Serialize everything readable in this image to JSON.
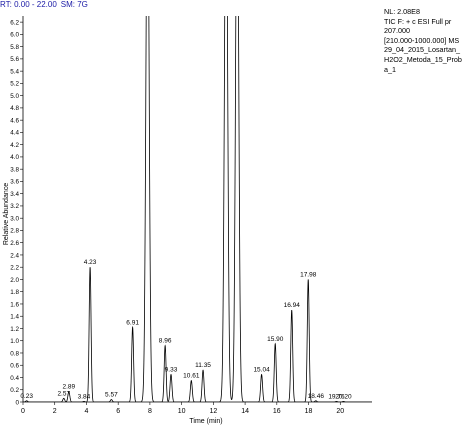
{
  "header": {
    "range_label": "RT: 0.00 - 22.00",
    "smoothing_label": "SM: 7G"
  },
  "info": {
    "lines": [
      "NL: 2.08E8",
      "TIC F: + c ESI Full pr",
      "207.000",
      "[210.000-1000.000]  MS",
      "29_04_2015_Losartan_",
      "H2O2_Metoda_15_Prob",
      "a_1"
    ]
  },
  "chart_data": {
    "type": "line",
    "title": "",
    "xlabel": "Time (min)",
    "ylabel": "Relative Abundance",
    "xlim": [
      0,
      22
    ],
    "ylim": [
      0,
      6.3
    ],
    "x_ticks": [
      0,
      2,
      4,
      6,
      8,
      10,
      12,
      14,
      16,
      18,
      20
    ],
    "y_ticks": [
      "0",
      "0.2",
      "0.4",
      "0.6",
      "0.8",
      "1.0",
      "1.2",
      "1.4",
      "1.6",
      "1.8",
      "2.0",
      "2.2",
      "2.4",
      "2.6",
      "2.8",
      "3.0",
      "3.2",
      "3.4",
      "3.6",
      "3.8",
      "4.0",
      "4.2",
      "4.4",
      "4.6",
      "4.8",
      "5.0",
      "5.2",
      "5.4",
      "5.6",
      "5.8",
      "6.0",
      "6.2"
    ],
    "grid": false,
    "peaks": [
      {
        "rt": 0.23,
        "height": 0.02,
        "label": "0.23"
      },
      {
        "rt": 2.57,
        "height": 0.06,
        "label": "2.57"
      },
      {
        "rt": 2.89,
        "height": 0.17,
        "label": "2.89"
      },
      {
        "rt": 3.84,
        "height": 0.01,
        "label": "3.84"
      },
      {
        "rt": 4.23,
        "height": 2.2,
        "label": "4.23"
      },
      {
        "rt": 5.57,
        "height": 0.04,
        "label": "5.57"
      },
      {
        "rt": 6.91,
        "height": 1.22,
        "label": "6.91"
      },
      {
        "rt": 7.85,
        "height": 9.0,
        "label": ""
      },
      {
        "rt": 8.96,
        "height": 0.92,
        "label": "8.96"
      },
      {
        "rt": 9.33,
        "height": 0.45,
        "label": "9.33"
      },
      {
        "rt": 10.61,
        "height": 0.35,
        "label": "10.61"
      },
      {
        "rt": 11.35,
        "height": 0.52,
        "label": "11.35"
      },
      {
        "rt": 12.8,
        "height": 9.0,
        "label": ""
      },
      {
        "rt": 13.5,
        "height": 9.0,
        "label": ""
      },
      {
        "rt": 15.04,
        "height": 0.45,
        "label": "15.04"
      },
      {
        "rt": 15.9,
        "height": 0.95,
        "label": "15.90"
      },
      {
        "rt": 16.94,
        "height": 1.5,
        "label": "16.94"
      },
      {
        "rt": 17.98,
        "height": 2.0,
        "label": "17.98"
      },
      {
        "rt": 18.46,
        "height": 0.02,
        "label": "18.46"
      },
      {
        "rt": 19.76,
        "height": 0.01,
        "label": "19.76"
      },
      {
        "rt": 20.2,
        "height": 0.01,
        "label": "20.20"
      }
    ]
  }
}
